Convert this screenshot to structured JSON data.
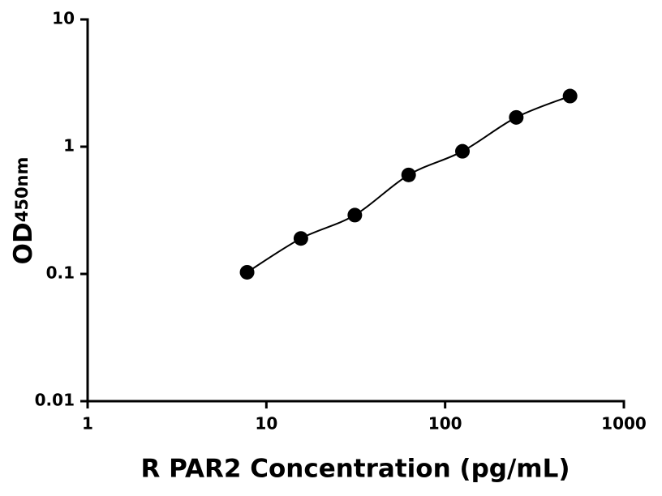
{
  "chart_data": {
    "type": "scatter",
    "xlabel": "R PAR2 Concentration (pg/mL)",
    "ylabel": "OD",
    "ylabel_sub": "450nm",
    "x": [
      7.8,
      15.6,
      31.25,
      62.5,
      125,
      250,
      500
    ],
    "values": [
      0.103,
      0.19,
      0.29,
      0.6,
      0.92,
      1.7,
      2.5
    ],
    "color": "#000000",
    "xscale": "log",
    "yscale": "log",
    "xlim": [
      1,
      1000
    ],
    "xticks": [
      1,
      10,
      100,
      1000
    ],
    "ylim": [
      0.01,
      10
    ],
    "yticks": [
      0.01,
      0.1,
      1,
      10
    ],
    "fit_line": true
  }
}
